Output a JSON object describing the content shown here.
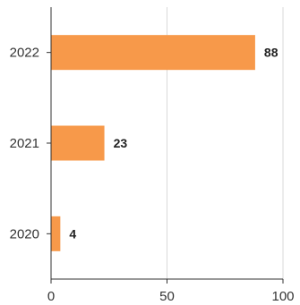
{
  "chart_data": {
    "type": "bar",
    "orientation": "horizontal",
    "categories": [
      "2022",
      "2021",
      "2020"
    ],
    "values": [
      88,
      23,
      4
    ],
    "xlim": [
      0,
      100
    ],
    "xticks": [
      0,
      50,
      100
    ],
    "grid": true,
    "bar_color": "#f7994a",
    "title": "",
    "xlabel": "",
    "ylabel": ""
  }
}
